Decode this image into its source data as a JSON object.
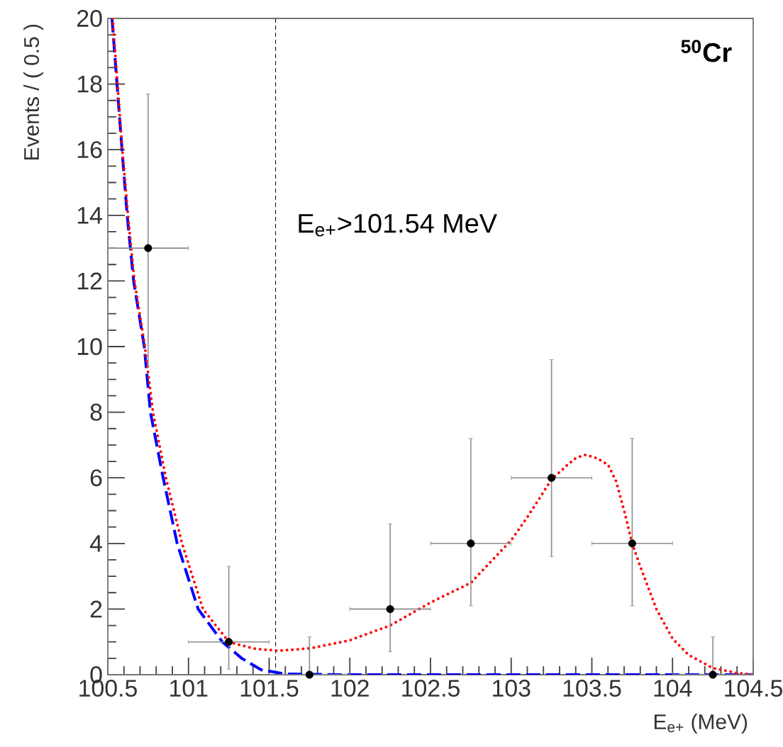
{
  "chart_data": {
    "type": "scatter",
    "xlabel": "E$_{e+}$ (MeV)",
    "ylabel": "Events / ( 0.5 )",
    "annotations": [
      "E$_{e+}$>101.54 MeV",
      "$^{50}$Cr"
    ],
    "xlim": [
      100.5,
      104.5
    ],
    "ylim": [
      0,
      20
    ],
    "xticks": [
      100.5,
      101,
      101.5,
      102,
      102.5,
      103,
      103.5,
      104,
      104.5
    ],
    "yticks": [
      0,
      2,
      4,
      6,
      8,
      10,
      12,
      14,
      16,
      18,
      20
    ],
    "grid": false,
    "ref_lines": [
      {
        "axis": "x",
        "value": 101.54,
        "color": "#000000",
        "line_style": "dashed"
      }
    ],
    "series": [
      {
        "type": "line",
        "color": "#0000ff",
        "line_style": "dashed",
        "marker": "none",
        "x": [
          100.526,
          100.557,
          100.588,
          100.62,
          100.66,
          100.726,
          100.764,
          100.843,
          100.93,
          101.06,
          101.21,
          101.33,
          101.45,
          101.6,
          102,
          103,
          104.5
        ],
        "values": [
          20,
          18,
          16,
          14,
          12,
          10,
          8,
          6,
          4,
          2,
          1,
          0.5,
          0.15,
          0.02,
          0,
          0,
          0
        ]
      },
      {
        "type": "line",
        "color": "#ff0000",
        "line_style": "dotted",
        "marker": "none",
        "x": [
          100.53,
          100.56,
          100.59,
          100.625,
          100.665,
          100.73,
          100.78,
          100.86,
          100.96,
          101.09,
          101.25,
          101.4,
          101.55,
          101.75,
          102,
          102.25,
          102.5,
          102.75,
          103,
          103.1,
          103.25,
          103.35,
          103.4,
          103.46,
          103.53,
          103.6,
          103.65,
          103.7,
          103.75,
          103.8,
          103.9,
          104,
          104.1,
          104.25,
          104.4,
          104.5
        ],
        "values": [
          20,
          18,
          16,
          14,
          12,
          10,
          8,
          6,
          4,
          2,
          1,
          0.8,
          0.73,
          0.8,
          1.05,
          1.5,
          2.2,
          2.8,
          4.1,
          4.8,
          5.95,
          6.4,
          6.6,
          6.7,
          6.6,
          6.4,
          5.9,
          5.0,
          4.0,
          3.3,
          2.0,
          1.1,
          0.6,
          0.2,
          0.05,
          0
        ]
      },
      {
        "color": "#000000",
        "marker": "circle",
        "x": [
          100.75,
          101.25,
          101.75,
          102.25,
          102.75,
          103.25,
          103.75,
          104.25
        ],
        "values": [
          13,
          1,
          0,
          2,
          4,
          6,
          4,
          0
        ],
        "errors": [
          [
            9.4,
            17.7
          ],
          [
            0.17,
            3.3
          ],
          [
            0,
            1.15
          ],
          [
            0.7,
            4.6
          ],
          [
            2.1,
            7.2
          ],
          [
            3.6,
            9.6
          ],
          [
            2.1,
            7.2
          ],
          [
            0,
            1.15
          ]
        ],
        "xerrors": [
          0.25,
          0.25,
          0.25,
          0.25,
          0.25,
          0.25,
          0.25,
          0.25
        ]
      }
    ]
  }
}
